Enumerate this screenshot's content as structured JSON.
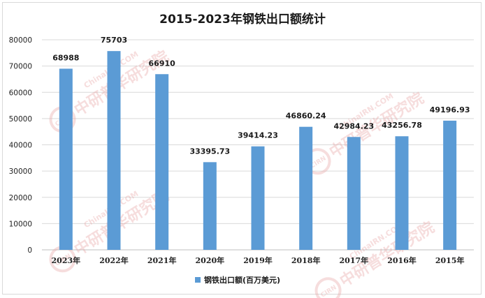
{
  "chart_data": {
    "type": "bar",
    "title": "2015-2023年钢铁出口额统计",
    "categories": [
      "2023年",
      "2022年",
      "2021年",
      "2020年",
      "2019年",
      "2018年",
      "2017年",
      "2016年",
      "2015年"
    ],
    "series": [
      {
        "name": "钢铁出口额(百万美元)",
        "values": [
          68988,
          75703,
          66910,
          33395.73,
          39414.23,
          46860.24,
          42984.23,
          43256.78,
          49196.93
        ],
        "labels": [
          "68988",
          "75703",
          "66910",
          "33395.73",
          "39414.23",
          "46860.24",
          "42984.23",
          "43256.78",
          "49196.93"
        ],
        "color": "#5b9bd5"
      }
    ],
    "yticks": [
      "0",
      "10000",
      "20000",
      "30000",
      "40000",
      "50000",
      "60000",
      "70000",
      "80000"
    ],
    "ylim": [
      0,
      80000
    ],
    "xlabel": "",
    "ylabel": "",
    "grid": true,
    "legend_position": "bottom"
  },
  "watermark": {
    "brand_cn": "中研普华研究院",
    "brand_en": "ChinaIRN.COM",
    "logo": "CIRN",
    "color": "#e8a0a0"
  }
}
